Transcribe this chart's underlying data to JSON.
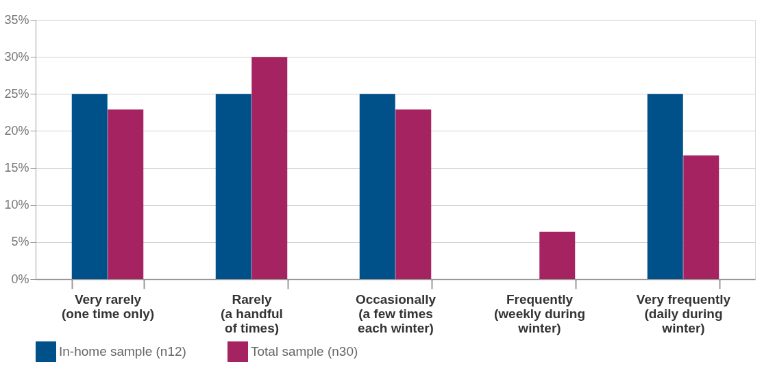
{
  "chart_data": {
    "type": "bar",
    "categories": [
      "Very rarely\n(one time only)",
      "Rarely\n(a handful\nof times)",
      "Occasionally\n(a few times\neach winter)",
      "Frequently\n(weekly during\nwinter)",
      "Very frequently\n(daily during\nwinter)"
    ],
    "series": [
      {
        "name": "In-home sample (n12)",
        "color": "#00508a",
        "values": [
          25,
          25,
          25,
          0,
          25
        ]
      },
      {
        "name": "Total sample (n30)",
        "color": "#a62361",
        "values": [
          22.9,
          30,
          22.9,
          6.4,
          16.7
        ]
      }
    ],
    "ylim": [
      0,
      35
    ],
    "yticks": [
      {
        "value": 0,
        "label": "0%"
      },
      {
        "value": 5,
        "label": "5%"
      },
      {
        "value": 10,
        "label": "10%"
      },
      {
        "value": 15,
        "label": "15%"
      },
      {
        "value": 20,
        "label": "20%"
      },
      {
        "value": 25,
        "label": "25%"
      },
      {
        "value": 30,
        "label": "30%"
      },
      {
        "value": 35,
        "label": "35%"
      }
    ],
    "grid": "y",
    "legend": "bottom"
  }
}
